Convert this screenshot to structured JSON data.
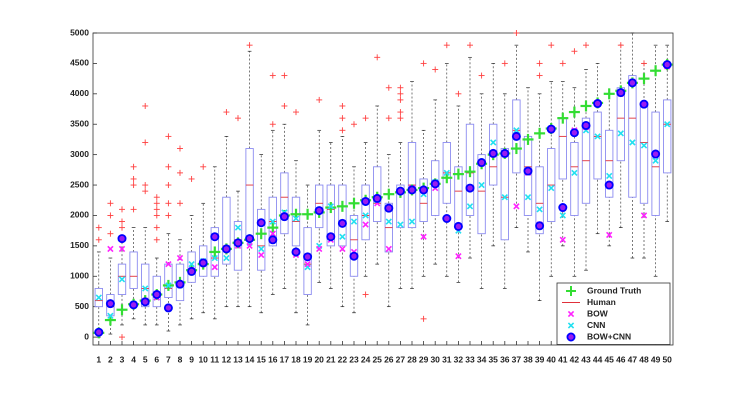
{
  "chart_data": {
    "type": "box",
    "categories": [
      "1",
      "2",
      "3",
      "4",
      "5",
      "6",
      "7",
      "8",
      "9",
      "10",
      "11",
      "12",
      "13",
      "14",
      "15",
      "16",
      "17",
      "18",
      "19",
      "20",
      "21",
      "22",
      "23",
      "24",
      "25",
      "26",
      "27",
      "28",
      "29",
      "30",
      "31",
      "32",
      "33",
      "34",
      "35",
      "36",
      "37",
      "38",
      "39",
      "40",
      "41",
      "42",
      "43",
      "44",
      "45",
      "46",
      "47",
      "48",
      "49",
      "50"
    ],
    "ylim": [
      -130,
      5000
    ],
    "yticks": [
      0,
      500,
      1000,
      1500,
      2000,
      2500,
      3000,
      3500,
      4000,
      4500,
      5000
    ],
    "legend": "lower right",
    "boxes": {
      "name": "Human",
      "color": "#8c8cf0",
      "median_color": "#e0303a",
      "outlier_color": "#ff4040",
      "whislo": [
        0,
        50,
        200,
        300,
        200,
        200,
        100,
        200,
        300,
        400,
        300,
        500,
        500,
        500,
        400,
        700,
        800,
        400,
        200,
        900,
        800,
        500,
        400,
        1000,
        1200,
        500,
        800,
        800,
        1000,
        1200,
        1000,
        900,
        1300,
        800,
        1500,
        800,
        1800,
        1400,
        600,
        1000,
        1500,
        1000,
        1100,
        1700,
        1500,
        1800,
        1300,
        1300,
        1000,
        1900
      ],
      "q1": [
        500,
        350,
        700,
        800,
        500,
        500,
        650,
        600,
        900,
        1000,
        1000,
        1200,
        1100,
        1600,
        1100,
        1500,
        1700,
        1500,
        700,
        1800,
        1500,
        1500,
        1000,
        1600,
        1900,
        1400,
        1800,
        1800,
        1900,
        2000,
        2200,
        1800,
        2000,
        1700,
        2500,
        1600,
        2700,
        2000,
        1700,
        1900,
        2600,
        2000,
        2200,
        2600,
        2300,
        2900,
        2300,
        2200,
        2000,
        2700
      ],
      "median": [
        600,
        500,
        1000,
        1000,
        800,
        700,
        800,
        900,
        1100,
        1200,
        1300,
        1500,
        1600,
        2500,
        1500,
        1900,
        2300,
        1900,
        1200,
        2200,
        2100,
        1900,
        1600,
        2000,
        2200,
        1800,
        2400,
        2500,
        2200,
        2500,
        2700,
        2400,
        2700,
        2400,
        2800,
        2300,
        3400,
        2800,
        2200,
        2500,
        3300,
        2800,
        2900,
        3300,
        2900,
        3600,
        3600,
        3200,
        2800,
        3500
      ],
      "q3": [
        800,
        700,
        1200,
        1400,
        1200,
        1000,
        1200,
        1200,
        1400,
        1500,
        1800,
        2300,
        1900,
        3100,
        2100,
        2300,
        2700,
        2300,
        1800,
        2500,
        2500,
        2500,
        2000,
        2500,
        2800,
        2200,
        2500,
        3200,
        2600,
        2900,
        3200,
        2800,
        3500,
        3000,
        3500,
        3100,
        3900,
        3300,
        2800,
        3100,
        3600,
        3200,
        3600,
        3700,
        3400,
        4100,
        4300,
        3800,
        3700,
        3900
      ],
      "whishi": [
        1400,
        1300,
        1600,
        1800,
        1800,
        1300,
        1700,
        1600,
        2000,
        2200,
        2800,
        3300,
        2400,
        4700,
        3000,
        3400,
        3500,
        2900,
        2500,
        3400,
        3200,
        3300,
        2800,
        3200,
        3800,
        3000,
        3200,
        4200,
        3400,
        3900,
        4500,
        3800,
        4600,
        4000,
        4500,
        4000,
        4800,
        4100,
        4000,
        4200,
        4200,
        4100,
        4400,
        4500,
        4000,
        4800,
        5000,
        4500,
        4800,
        4800
      ],
      "outliers": [
        [
          1600,
          1800
        ],
        [
          1700,
          2000,
          2200
        ],
        [
          0,
          1800,
          1900,
          2100
        ],
        [
          2100,
          2500,
          2600,
          2800
        ],
        [
          2400,
          2500,
          3200,
          3800
        ],
        [
          1600,
          1800,
          2000,
          2100,
          2200,
          2300
        ],
        [
          2000,
          2200,
          2500,
          2800,
          3300
        ],
        [
          2200,
          2700,
          3100
        ],
        [
          2600
        ],
        [
          2800
        ],
        [],
        [
          3700
        ],
        [
          3600
        ],
        [
          4800
        ],
        [],
        [
          3500,
          4300
        ],
        [
          3800,
          4300
        ],
        [
          3700
        ],
        [],
        [
          3900
        ],
        [],
        [
          3400,
          3600,
          3800
        ],
        [
          3500
        ],
        [
          700,
          3600
        ],
        [
          4600
        ],
        [
          3600,
          4100
        ],
        [
          3600,
          3700,
          3900,
          4000,
          4100
        ],
        [],
        [
          300,
          4500
        ],
        [
          4400
        ],
        [
          4800
        ],
        [
          4000
        ],
        [
          4800
        ],
        [
          4300
        ],
        [],
        [
          4500
        ],
        [
          5000
        ],
        [],
        [
          4300,
          4500
        ],
        [
          4800
        ],
        [
          4500
        ],
        [
          4700
        ],
        [
          4800
        ],
        [],
        [],
        [
          4800
        ],
        [],
        [
          4500
        ],
        [],
        []
      ]
    },
    "series": [
      {
        "name": "Ground Truth",
        "color": "#33dd33",
        "marker": "plus",
        "values": [
          70,
          280,
          450,
          540,
          600,
          700,
          850,
          900,
          1100,
          1200,
          1400,
          1450,
          1550,
          1600,
          1700,
          1800,
          2000,
          2020,
          2020,
          2050,
          2130,
          2150,
          2200,
          2250,
          2300,
          2350,
          2380,
          2420,
          2450,
          2520,
          2620,
          2680,
          2720,
          2850,
          3000,
          3020,
          3100,
          3250,
          3350,
          3430,
          3600,
          3700,
          3800,
          3850,
          4000,
          4050,
          4180,
          4250,
          4380,
          4480
        ]
      },
      {
        "name": "BOW",
        "color": "#ff22ff",
        "marker": "x",
        "values": [
          70,
          1450,
          1450,
          520,
          600,
          650,
          1200,
          1300,
          1100,
          1200,
          1150,
          1450,
          1500,
          1500,
          1350,
          1700,
          2000,
          1350,
          1200,
          1450,
          1600,
          1450,
          1400,
          1850,
          2200,
          1450,
          2400,
          2450,
          1650,
          2450,
          1950,
          1330,
          2450,
          2850,
          3000,
          3000,
          2150,
          2700,
          1850,
          3400,
          1600,
          3400,
          3450,
          3850,
          1680,
          4000,
          4200,
          2000,
          3000,
          4450
        ]
      },
      {
        "name": "CNN",
        "color": "#22e0f0",
        "marker": "x",
        "values": [
          650,
          350,
          950,
          550,
          800,
          650,
          850,
          850,
          1200,
          1250,
          1300,
          1300,
          1800,
          1550,
          1450,
          1900,
          2050,
          1950,
          1150,
          1500,
          2150,
          1650,
          1900,
          2000,
          2250,
          1900,
          1850,
          1900,
          2350,
          2550,
          2700,
          1750,
          2150,
          2500,
          3200,
          2300,
          3400,
          2300,
          2100,
          2450,
          2000,
          2700,
          3400,
          3300,
          2650,
          3350,
          3200,
          3150,
          2900,
          3500
        ]
      },
      {
        "name": "BOW+CNN",
        "color": "#0000ff",
        "marker": "circle",
        "values": [
          80,
          550,
          1620,
          530,
          580,
          700,
          480,
          870,
          1080,
          1220,
          1650,
          1450,
          1550,
          1620,
          1880,
          1600,
          1980,
          1400,
          1320,
          2080,
          1650,
          1870,
          1330,
          2230,
          2280,
          2120,
          2400,
          2420,
          2420,
          2520,
          1950,
          1820,
          2450,
          2870,
          3020,
          3020,
          3300,
          2730,
          1830,
          3420,
          2130,
          3360,
          3480,
          3840,
          2500,
          4020,
          4180,
          3830,
          3010,
          4480
        ]
      }
    ]
  }
}
